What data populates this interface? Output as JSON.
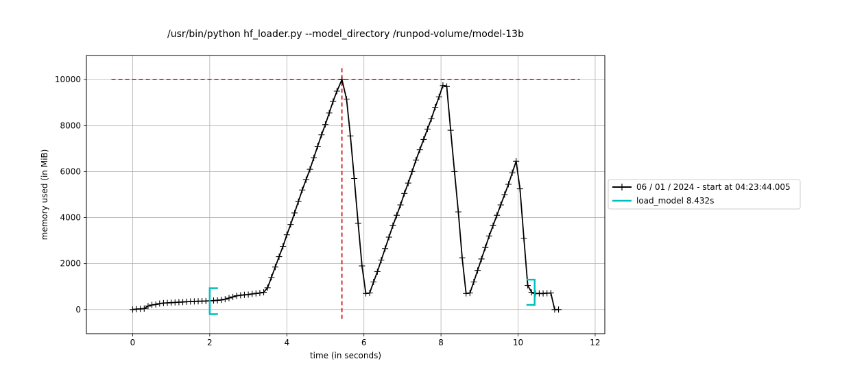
{
  "chart_data": {
    "type": "line",
    "title": "/usr/bin/python hf_loader.py --model_directory /runpod-volume/model-13b",
    "xlabel": "time (in seconds)",
    "ylabel": "memory used (in MiB)",
    "xlim": [
      -1.2,
      12.25
    ],
    "ylim": [
      -1050,
      11050
    ],
    "xticks": [
      0,
      2,
      4,
      6,
      8,
      10,
      12
    ],
    "yticks": [
      0,
      2000,
      4000,
      6000,
      8000,
      10000
    ],
    "grid": true,
    "legend_position": "right",
    "series": [
      {
        "name": "06 / 01 / 2024 - start at 04:23:44.005",
        "color": "#000000",
        "marker": "plus",
        "x": [
          0,
          0.1,
          0.2,
          0.3,
          0.4,
          0.5,
          0.6,
          0.7,
          0.8,
          0.9,
          1.0,
          1.1,
          1.2,
          1.3,
          1.4,
          1.5,
          1.6,
          1.7,
          1.8,
          1.9,
          2.0,
          2.1,
          2.2,
          2.3,
          2.4,
          2.5,
          2.6,
          2.7,
          2.8,
          2.9,
          3.0,
          3.1,
          3.2,
          3.3,
          3.4,
          3.5,
          3.6,
          3.7,
          3.8,
          3.9,
          4.0,
          4.1,
          4.2,
          4.3,
          4.4,
          4.5,
          4.6,
          4.7,
          4.8,
          4.9,
          5.0,
          5.1,
          5.2,
          5.3,
          5.43,
          5.55,
          5.65,
          5.75,
          5.85,
          5.95,
          6.05,
          6.15,
          6.25,
          6.35,
          6.45,
          6.55,
          6.65,
          6.75,
          6.85,
          6.95,
          7.05,
          7.15,
          7.25,
          7.35,
          7.45,
          7.55,
          7.65,
          7.75,
          7.85,
          7.95,
          8.05,
          8.15,
          8.25,
          8.35,
          8.45,
          8.55,
          8.65,
          8.75,
          8.85,
          8.95,
          9.05,
          9.15,
          9.25,
          9.35,
          9.45,
          9.55,
          9.65,
          9.75,
          9.85,
          9.95,
          10.05,
          10.15,
          10.25,
          10.35,
          10.45,
          10.55,
          10.65,
          10.75,
          10.85,
          10.95,
          11.05
        ],
        "y": [
          0,
          20,
          30,
          40,
          150,
          200,
          220,
          260,
          280,
          290,
          300,
          310,
          320,
          330,
          340,
          350,
          355,
          360,
          365,
          370,
          380,
          390,
          400,
          420,
          450,
          500,
          550,
          600,
          620,
          640,
          650,
          680,
          700,
          720,
          750,
          950,
          1400,
          1850,
          2300,
          2750,
          3250,
          3700,
          4200,
          4700,
          5200,
          5650,
          6100,
          6600,
          7100,
          7600,
          8050,
          8550,
          9050,
          9500,
          10000,
          9150,
          7550,
          5700,
          3750,
          1900,
          700,
          720,
          1200,
          1650,
          2150,
          2650,
          3150,
          3650,
          4100,
          4550,
          5050,
          5500,
          6000,
          6500,
          6950,
          7400,
          7850,
          8300,
          8800,
          9250,
          9750,
          9700,
          7800,
          6000,
          4250,
          2250,
          700,
          720,
          1200,
          1700,
          2200,
          2700,
          3200,
          3650,
          4100,
          4550,
          5000,
          5450,
          5950,
          6450,
          5250,
          3100,
          1050,
          750,
          700,
          700,
          700,
          710,
          720,
          0,
          0
        ]
      },
      {
        "name": "load_model 8.432s",
        "color": "#00bfbf",
        "marker": "bracket",
        "brackets": [
          {
            "x": 2.0,
            "side": "open",
            "ymin": -200,
            "ymax": 930
          },
          {
            "x": 10.43,
            "side": "close",
            "ymin": 200,
            "ymax": 1300
          }
        ]
      }
    ],
    "reference_lines": [
      {
        "orientation": "horizontal",
        "y": 10000,
        "xmin": -0.55,
        "xmax": 11.6,
        "color": "#ff0000",
        "style": "dashed"
      },
      {
        "orientation": "vertical",
        "x": 5.43,
        "ymin": -500,
        "ymax": 10500,
        "color": "#cc0000",
        "style": "dashed"
      }
    ]
  }
}
